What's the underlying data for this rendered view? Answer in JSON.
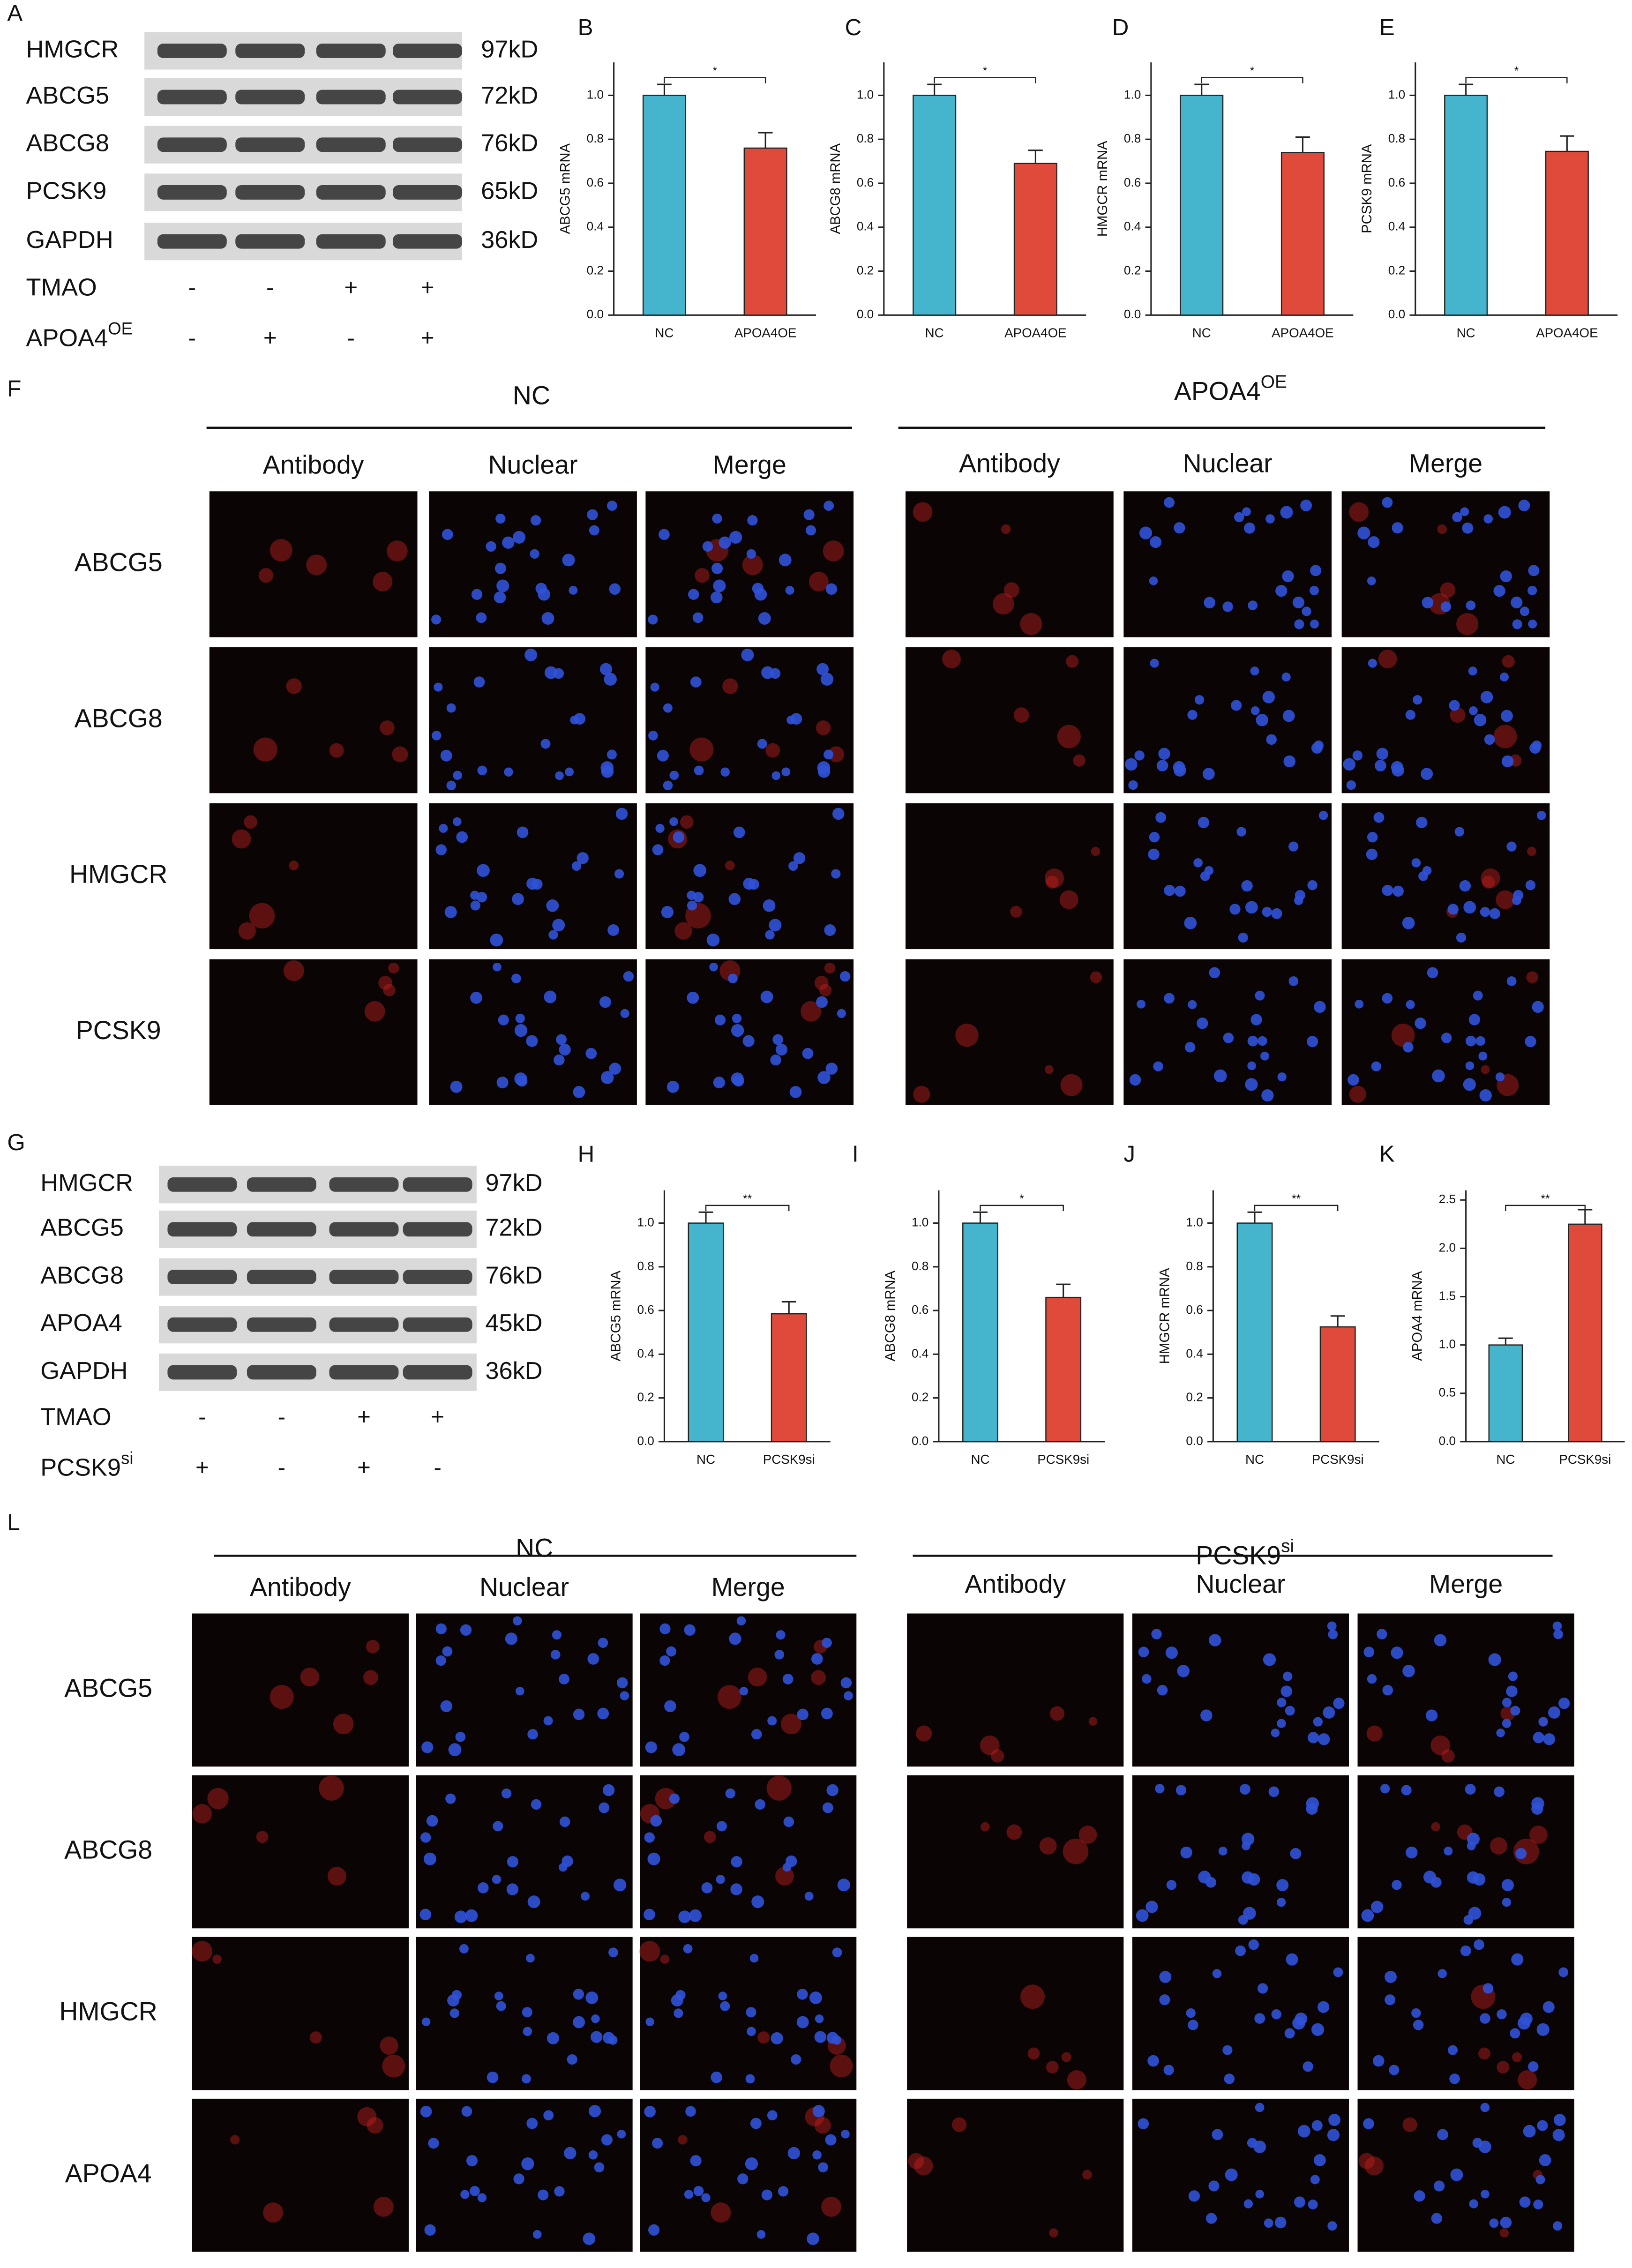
{
  "blot_a": {
    "label": "A",
    "rows": [
      {
        "protein": "HMGCR",
        "size": "97kD"
      },
      {
        "protein": "ABCG5",
        "size": "72kD"
      },
      {
        "protein": "ABCG8",
        "size": "76kD"
      },
      {
        "protein": "PCSK9",
        "size": "65kD"
      },
      {
        "protein": "GAPDH",
        "size": "36kD"
      }
    ],
    "treatments": [
      {
        "name": "TMAO",
        "signs": [
          "-",
          "-",
          "+",
          "+"
        ]
      },
      {
        "name": "APOA4",
        "sup": "OE",
        "signs": [
          "-",
          "+",
          "-",
          "+"
        ]
      }
    ]
  },
  "blot_g": {
    "label": "G",
    "rows": [
      {
        "protein": "HMGCR",
        "size": "97kD"
      },
      {
        "protein": "ABCG5",
        "size": "72kD"
      },
      {
        "protein": "ABCG8",
        "size": "76kD"
      },
      {
        "protein": "APOA4",
        "size": "45kD"
      },
      {
        "protein": "GAPDH",
        "size": "36kD"
      }
    ],
    "treatments": [
      {
        "name": "TMAO",
        "signs": [
          "-",
          "-",
          "+",
          "+"
        ]
      },
      {
        "name": "PCSK9",
        "sup": "si",
        "signs": [
          "+",
          "-",
          "+",
          "-"
        ]
      }
    ]
  },
  "chart_data": [
    {
      "type": "bar",
      "panel_label": "B",
      "ylabel": "ABCG5 mRNA",
      "categories": [
        "NC",
        "APOA4OE"
      ],
      "values": [
        1.0,
        0.76
      ],
      "errors": [
        0.05,
        0.07
      ],
      "colors": [
        "#45b4cd",
        "#e04a3a"
      ],
      "ylim": [
        0,
        1.15
      ],
      "yticks": [
        {
          "value": 0,
          "label": "0.0"
        },
        0.2,
        0.4,
        0.6,
        0.8,
        {
          "value": 1,
          "label": "1.0"
        }
      ],
      "significance": "*"
    },
    {
      "type": "bar",
      "panel_label": "C",
      "ylabel": "ABCG8 mRNA",
      "categories": [
        "NC",
        "APOA4OE"
      ],
      "values": [
        1.0,
        0.69
      ],
      "errors": [
        0.05,
        0.06
      ],
      "colors": [
        "#45b4cd",
        "#e04a3a"
      ],
      "ylim": [
        0,
        1.15
      ],
      "yticks": [
        {
          "value": 0,
          "label": "0.0"
        },
        0.2,
        0.4,
        0.6,
        0.8,
        {
          "value": 1,
          "label": "1.0"
        }
      ],
      "significance": "*"
    },
    {
      "type": "bar",
      "panel_label": "D",
      "ylabel": "HMGCR mRNA",
      "categories": [
        "NC",
        "APOA4OE"
      ],
      "values": [
        1.0,
        0.74
      ],
      "errors": [
        0.05,
        0.07
      ],
      "colors": [
        "#45b4cd",
        "#e04a3a"
      ],
      "ylim": [
        0,
        1.15
      ],
      "yticks": [
        {
          "value": 0,
          "label": "0.0"
        },
        0.2,
        0.4,
        0.6,
        0.8,
        {
          "value": 1,
          "label": "1.0"
        }
      ],
      "significance": "*"
    },
    {
      "type": "bar",
      "panel_label": "E",
      "ylabel": "PCSK9 mRNA",
      "categories": [
        "NC",
        "APOA4OE"
      ],
      "values": [
        1.0,
        0.745
      ],
      "errors": [
        0.05,
        0.07
      ],
      "colors": [
        "#45b4cd",
        "#e04a3a"
      ],
      "ylim": [
        0,
        1.15
      ],
      "yticks": [
        {
          "value": 0,
          "label": "0.0"
        },
        0.2,
        0.4,
        0.6,
        0.8,
        {
          "value": 1,
          "label": "1.0"
        }
      ],
      "significance": "*"
    },
    {
      "type": "bar",
      "panel_label": "H",
      "ylabel": "ABCG5 mRNA",
      "categories": [
        "NC",
        "PCSK9si"
      ],
      "values": [
        1.0,
        0.585
      ],
      "errors": [
        0.05,
        0.055
      ],
      "colors": [
        "#45b4cd",
        "#e04a3a"
      ],
      "ylim": [
        0,
        1.15
      ],
      "yticks": [
        {
          "value": 0,
          "label": "0.0"
        },
        0.2,
        0.4,
        0.6,
        0.8,
        {
          "value": 1,
          "label": "1.0"
        }
      ],
      "significance": "**"
    },
    {
      "type": "bar",
      "panel_label": "I",
      "ylabel": "ABCG8 mRNA",
      "categories": [
        "NC",
        "PCSK9si"
      ],
      "values": [
        1.0,
        0.66
      ],
      "errors": [
        0.05,
        0.06
      ],
      "colors": [
        "#45b4cd",
        "#e04a3a"
      ],
      "ylim": [
        0,
        1.15
      ],
      "yticks": [
        {
          "value": 0,
          "label": "0.0"
        },
        0.2,
        0.4,
        0.6,
        0.8,
        {
          "value": 1,
          "label": "1.0"
        }
      ],
      "significance": "*"
    },
    {
      "type": "bar",
      "panel_label": "J",
      "ylabel": "HMGCR mRNA",
      "categories": [
        "NC",
        "PCSK9si"
      ],
      "values": [
        1.0,
        0.525
      ],
      "errors": [
        0.05,
        0.05
      ],
      "colors": [
        "#45b4cd",
        "#e04a3a"
      ],
      "ylim": [
        0,
        1.15
      ],
      "yticks": [
        {
          "value": 0,
          "label": "0.0"
        },
        0.2,
        0.4,
        0.6,
        0.8,
        {
          "value": 1,
          "label": "1.0"
        }
      ],
      "significance": "**"
    },
    {
      "type": "bar",
      "panel_label": "K",
      "ylabel": "APOA4 mRNA",
      "categories": [
        "NC",
        "PCSK9si"
      ],
      "values": [
        1.0,
        2.25
      ],
      "errors": [
        0.07,
        0.15
      ],
      "colors": [
        "#45b4cd",
        "#e04a3a"
      ],
      "ylim": [
        0,
        2.6
      ],
      "yticks": [
        {
          "value": 0,
          "label": "0.0"
        },
        0.5,
        {
          "value": 1,
          "label": "1.0"
        },
        1.5,
        {
          "value": 2,
          "label": "2.0"
        },
        2.5
      ],
      "significance": "**"
    }
  ],
  "panel_f": {
    "label": "F",
    "groups": [
      {
        "title": "NC",
        "columns": [
          "Antibody",
          "Nuclear",
          "Merge"
        ]
      },
      {
        "title": "APOA4",
        "sup": "OE",
        "columns": [
          "Antibody",
          "Nuclear",
          "Merge"
        ]
      }
    ],
    "rows": [
      "ABCG5",
      "ABCG8",
      "HMGCR",
      "PCSK9"
    ]
  },
  "panel_l": {
    "label": "L",
    "groups": [
      {
        "title": "NC",
        "columns": [
          "Antibody",
          "Nuclear",
          "Merge"
        ]
      },
      {
        "title": "PCSK9",
        "sup": "si",
        "columns": [
          "Antibody",
          "Nuclear",
          "Merge"
        ]
      }
    ],
    "rows": [
      "ABCG5",
      "ABCG8",
      "HMGCR",
      "APOA4"
    ]
  }
}
